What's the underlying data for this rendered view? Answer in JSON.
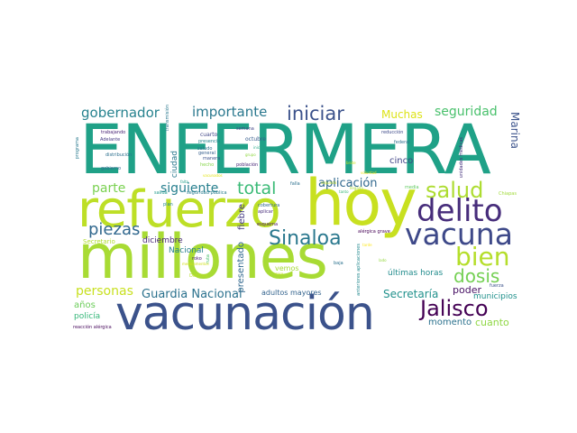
{
  "words": [
    {
      "text": "ENFERMERA",
      "color": "#1fa187"
    },
    {
      "text": "refuerzo",
      "color": "#bddf26"
    },
    {
      "text": "hoy",
      "color": "#c8e020"
    },
    {
      "text": "millones",
      "color": "#a8db34"
    },
    {
      "text": "vacunación",
      "color": "#3b528b"
    },
    {
      "text": "delito",
      "color": "#472d7b"
    },
    {
      "text": "vacuna",
      "color": "#3e4989"
    },
    {
      "text": "salud",
      "color": "#addc30"
    },
    {
      "text": "bien",
      "color": "#b5de2b"
    },
    {
      "text": "Jalisco",
      "color": "#440154"
    },
    {
      "text": "dosis",
      "color": "#75d054"
    },
    {
      "text": "Sinaloa",
      "color": "#2a788e"
    },
    {
      "text": "piezas",
      "color": "#31688e"
    },
    {
      "text": "total",
      "color": "#3aba76"
    },
    {
      "text": "iniciar",
      "color": "#3b528b"
    },
    {
      "text": "gobernador",
      "color": "#26828e"
    },
    {
      "text": "importante",
      "color": "#2a788e"
    },
    {
      "text": "seguridad",
      "color": "#4ac16d"
    },
    {
      "text": "parte",
      "color": "#7ad151"
    },
    {
      "text": "siguiente",
      "color": "#277f8e"
    },
    {
      "text": "aplicación",
      "color": "#31688e"
    },
    {
      "text": "personas",
      "color": "#c8e020"
    },
    {
      "text": "Guardia Nacional",
      "color": "#2c728e"
    },
    {
      "text": "Secretaría",
      "color": "#21918c"
    },
    {
      "text": "Muchas",
      "color": "#dde318"
    },
    {
      "text": "Marina",
      "color": "#3b528b"
    },
    {
      "text": "cinco",
      "color": "#414487"
    },
    {
      "text": "poder",
      "color": "#471063"
    },
    {
      "text": "cuanto",
      "color": "#8fd744"
    },
    {
      "text": "momento",
      "color": "#2c728e"
    },
    {
      "text": "municipios",
      "color": "#21918c"
    },
    {
      "text": "últimas horas",
      "color": "#228c8d"
    },
    {
      "text": "adultos mayores",
      "color": "#33638d"
    },
    {
      "text": "años",
      "color": "#6ccd5a"
    },
    {
      "text": "policía",
      "color": "#35b779"
    },
    {
      "text": "Nacional",
      "color": "#27808e"
    },
    {
      "text": "diciembre",
      "color": "#482878"
    },
    {
      "text": "presentado",
      "color": "#31688e"
    },
    {
      "text": "fiebre",
      "color": "#443983"
    },
    {
      "text": "ciudad",
      "color": "#2a788e"
    },
    {
      "text": "vemos",
      "color": "#a5db36"
    },
    {
      "text": "Secretario",
      "color": "#b0dd2f"
    },
    {
      "text": "reacción alérgica",
      "color": "#46075a"
    },
    {
      "text": "trabajando",
      "color": "#482475"
    },
    {
      "text": "Adelante",
      "color": "#443a83"
    },
    {
      "text": "distribución",
      "color": "#2d708e"
    },
    {
      "text": "gobierno",
      "color": "#31688e"
    },
    {
      "text": "programa",
      "color": "#29798e"
    },
    {
      "text": "cuarto",
      "color": "#404688"
    },
    {
      "text": "presencia",
      "color": "#25858e"
    },
    {
      "text": "semana",
      "color": "#414487"
    },
    {
      "text": "octubre",
      "color": "#365c8d"
    },
    {
      "text": "manera",
      "color": "#3b528b"
    },
    {
      "text": "hecho",
      "color": "#86d549"
    },
    {
      "text": "población",
      "color": "#482878"
    },
    {
      "text": "reducción",
      "color": "#3e4a89"
    },
    {
      "text": "federal",
      "color": "#2e6f8e"
    },
    {
      "text": "unidades médicas",
      "color": "#46327e"
    },
    {
      "text": "transmisión",
      "color": "#2a788e"
    },
    {
      "text": "salida",
      "color": "#1f988b"
    },
    {
      "text": "seguridad pública",
      "color": "#287c8e"
    },
    {
      "text": "falla",
      "color": "#2d708e"
    },
    {
      "text": "media",
      "color": "#60ca60"
    },
    {
      "text": "plan",
      "color": "#23888e"
    },
    {
      "text": "esquema",
      "color": "#481467"
    },
    {
      "text": "cobertura",
      "color": "#31688e"
    },
    {
      "text": "aplicar",
      "color": "#472c7a"
    },
    {
      "text": "alérgica grave",
      "color": "#440154"
    },
    {
      "text": "Chiapas",
      "color": "#a0da39"
    },
    {
      "text": "roko",
      "color": "#482173"
    },
    {
      "text": "ruta",
      "color": "#4ac16d"
    },
    {
      "text": "saludo",
      "color": "#2d718e"
    },
    {
      "text": "general",
      "color": "#355f8d"
    },
    {
      "text": "baja",
      "color": "#2c728e"
    },
    {
      "text": "fuerza",
      "color": "#3b528b"
    },
    {
      "text": "Defensa",
      "color": "#bade28"
    },
    {
      "text": "anteriores aplicaciones",
      "color": "#23898e"
    },
    {
      "text": "medicamentos",
      "color": "#d0e11c"
    },
    {
      "text": "tanto",
      "color": "#37b878"
    },
    {
      "text": "grupo",
      "color": "#90d743"
    },
    {
      "text": "inicio",
      "color": "#22a884"
    },
    {
      "text": "falta",
      "color": "#1f9e89"
    },
    {
      "text": "brote",
      "color": "#cae11f"
    },
    {
      "text": "voluntad",
      "color": "#f1e51d"
    },
    {
      "text": "caso",
      "color": "#bfdf25"
    },
    {
      "text": "tarde",
      "color": "#fde725"
    },
    {
      "text": "lado",
      "color": "#95d840"
    },
    {
      "text": "vacunados",
      "color": "#e2e418"
    },
    {
      "text": "segunda",
      "color": "#c0df25"
    },
    {
      "text": "llegada",
      "color": "#aadc32"
    }
  ]
}
